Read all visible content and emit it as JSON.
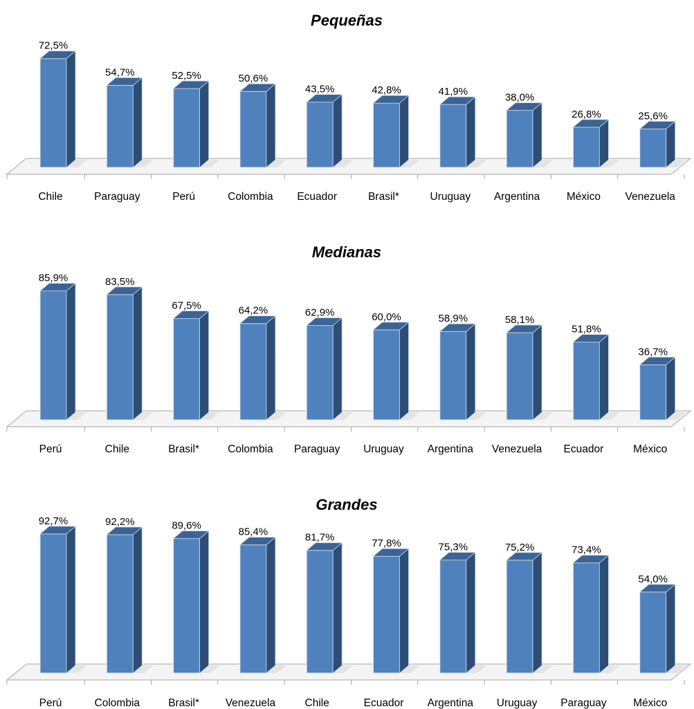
{
  "chart_data": [
    {
      "type": "bar",
      "title": "Pequeñas",
      "categories": [
        "Chile",
        "Paraguay",
        "Perú",
        "Colombia",
        "Ecuador",
        "Brasil*",
        "Uruguay",
        "Argentina",
        "México",
        "Venezuela"
      ],
      "values": [
        72.5,
        54.7,
        52.5,
        50.6,
        43.5,
        42.8,
        41.9,
        38.0,
        26.8,
        25.6
      ],
      "labels": [
        "72,5%",
        "54,7%",
        "52,5%",
        "50,6%",
        "43,5%",
        "42,8%",
        "41,9%",
        "38,0%",
        "26,8%",
        "25,6%"
      ],
      "grid": false
    },
    {
      "type": "bar",
      "title": "Medianas",
      "categories": [
        "Perú",
        "Chile",
        "Brasil*",
        "Colombia",
        "Paraguay",
        "Uruguay",
        "Argentina",
        "Venezuela",
        "Ecuador",
        "México"
      ],
      "values": [
        85.9,
        83.5,
        67.5,
        64.2,
        62.9,
        60.0,
        58.9,
        58.1,
        51.8,
        36.7
      ],
      "labels": [
        "85,9%",
        "83,5%",
        "67,5%",
        "64,2%",
        "62,9%",
        "60,0%",
        "58,9%",
        "58,1%",
        "51,8%",
        "36,7%"
      ],
      "grid": false
    },
    {
      "type": "bar",
      "title": "Grandes",
      "categories": [
        "Perú",
        "Colombia",
        "Brasil*",
        "Venezuela",
        "Chile",
        "Ecuador",
        "Argentina",
        "Uruguay",
        "Paraguay",
        "México"
      ],
      "values": [
        92.7,
        92.2,
        89.6,
        85.4,
        81.7,
        77.8,
        75.3,
        75.2,
        73.4,
        54.0
      ],
      "labels": [
        "92,7%",
        "92,2%",
        "89,6%",
        "85,4%",
        "81,7%",
        "77,8%",
        "75,3%",
        "75,2%",
        "73,4%",
        "54,0%"
      ],
      "grid": false
    }
  ],
  "colors": {
    "bar_front": "#4f81bd",
    "bar_side": "#2c4d75",
    "bar_top": "#3b6496",
    "floor": "#f4f4f4",
    "axis": "#a6a6a6"
  }
}
